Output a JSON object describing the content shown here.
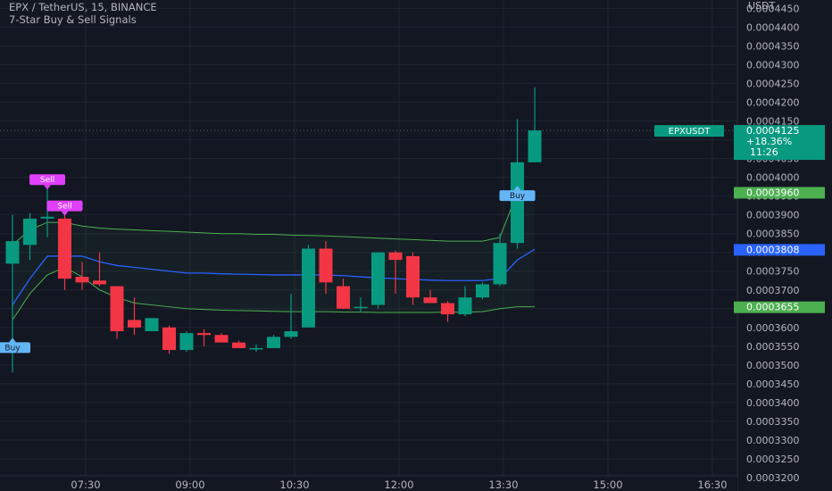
{
  "header": {
    "symbol_line": "EPX / TetherUS, 15, BINANCE",
    "indicator_line": "7-Star Buy & Sell Signals"
  },
  "price_scale": {
    "currency": "USDT",
    "tick_labels": [
      "0.0004450",
      "0.0004400",
      "0.0004350",
      "0.0004300",
      "0.0004250",
      "0.0004200",
      "0.0004150",
      "0.0004100",
      "0.0004050",
      "0.0004000",
      "0.0003950",
      "0.0003900",
      "0.0003850",
      "0.0003800",
      "0.0003750",
      "0.0003700",
      "0.0003650",
      "0.0003600",
      "0.0003550",
      "0.0003500",
      "0.0003450",
      "0.0003400",
      "0.0003350",
      "0.0003300",
      "0.0003250",
      "0.0003200"
    ],
    "last_price_badge": {
      "symbol": "EPXUSDT",
      "price": "0.0004125",
      "change": "+18.36%",
      "countdown": "11:26",
      "color": "#089981"
    },
    "level_badges": [
      {
        "label": "0.0003960",
        "value": 0.000396,
        "color": "#4caf50"
      },
      {
        "label": "0.0003808",
        "value": 0.0003808,
        "color": "#2962ff"
      },
      {
        "label": "0.0003655",
        "value": 0.0003655,
        "color": "#4caf50"
      }
    ]
  },
  "time_scale": {
    "labels": [
      {
        "text": "07:30",
        "bar": 4.0
      },
      {
        "text": "09:00",
        "bar": 10.0
      },
      {
        "text": "10:30",
        "bar": 16.0
      },
      {
        "text": "12:00",
        "bar": 22.0
      },
      {
        "text": "13:30",
        "bar": 28.0
      },
      {
        "text": "15:00",
        "bar": 34.0
      },
      {
        "text": "16:30",
        "bar": 40.0
      }
    ]
  },
  "chart_data": {
    "type": "candlestick",
    "symbol": "EPX / TetherUS",
    "interval": "15",
    "exchange": "BINANCE",
    "ylim": [
      0.00032,
      0.000447
    ],
    "colors": {
      "up": "#089981",
      "down": "#f23645",
      "background": "#131722",
      "grid": "#1f2430",
      "text": "#b2b5be",
      "band": "#4caf50",
      "basis": "#2962ff"
    },
    "candles": [
      {
        "o": 0.000377,
        "h": 0.00039,
        "l": 0.000348,
        "c": 0.000383
      },
      {
        "o": 0.000382,
        "h": 0.0003905,
        "l": 0.000378,
        "c": 0.000389
      },
      {
        "o": 0.000389,
        "h": 0.000397,
        "l": 0.000384,
        "c": 0.0003895
      },
      {
        "o": 0.000389,
        "h": 0.00039,
        "l": 0.00037,
        "c": 0.000373
      },
      {
        "o": 0.0003735,
        "h": 0.0003775,
        "l": 0.00037,
        "c": 0.000372
      },
      {
        "o": 0.0003725,
        "h": 0.00038,
        "l": 0.000371,
        "c": 0.0003715
      },
      {
        "o": 0.000371,
        "h": 0.000371,
        "l": 0.000357,
        "c": 0.000359
      },
      {
        "o": 0.000362,
        "h": 0.000368,
        "l": 0.000358,
        "c": 0.00036
      },
      {
        "o": 0.000359,
        "h": 0.0003625,
        "l": 0.000359,
        "c": 0.0003625
      },
      {
        "o": 0.00036,
        "h": 0.0003605,
        "l": 0.000353,
        "c": 0.000354
      },
      {
        "o": 0.000354,
        "h": 0.000359,
        "l": 0.0003535,
        "c": 0.0003585
      },
      {
        "o": 0.0003585,
        "h": 0.0003595,
        "l": 0.000355,
        "c": 0.000358
      },
      {
        "o": 0.000358,
        "h": 0.0003585,
        "l": 0.000356,
        "c": 0.000356
      },
      {
        "o": 0.000356,
        "h": 0.0003565,
        "l": 0.0003545,
        "c": 0.0003545
      },
      {
        "o": 0.0003545,
        "h": 0.0003555,
        "l": 0.0003535,
        "c": 0.0003545
      },
      {
        "o": 0.0003545,
        "h": 0.000358,
        "l": 0.0003545,
        "c": 0.0003575
      },
      {
        "o": 0.0003575,
        "h": 0.000369,
        "l": 0.000357,
        "c": 0.000359
      },
      {
        "o": 0.00036,
        "h": 0.000382,
        "l": 0.00036,
        "c": 0.000381
      },
      {
        "o": 0.000381,
        "h": 0.000383,
        "l": 0.000369,
        "c": 0.000372
      },
      {
        "o": 0.000371,
        "h": 0.000373,
        "l": 0.000365,
        "c": 0.000365
      },
      {
        "o": 0.0003655,
        "h": 0.000368,
        "l": 0.000364,
        "c": 0.0003655
      },
      {
        "o": 0.000366,
        "h": 0.00038,
        "l": 0.000365,
        "c": 0.00038
      },
      {
        "o": 0.00038,
        "h": 0.0003805,
        "l": 0.000369,
        "c": 0.000378
      },
      {
        "o": 0.000379,
        "h": 0.00038,
        "l": 0.000366,
        "c": 0.000368
      },
      {
        "o": 0.000368,
        "h": 0.00037,
        "l": 0.0003665,
        "c": 0.0003665
      },
      {
        "o": 0.0003665,
        "h": 0.000367,
        "l": 0.0003615,
        "c": 0.0003635
      },
      {
        "o": 0.0003635,
        "h": 0.000371,
        "l": 0.000363,
        "c": 0.000368
      },
      {
        "o": 0.000368,
        "h": 0.000372,
        "l": 0.0003675,
        "c": 0.0003715
      },
      {
        "o": 0.0003715,
        "h": 0.000385,
        "l": 0.000371,
        "c": 0.0003825
      },
      {
        "o": 0.0003825,
        "h": 0.0004155,
        "l": 0.000381,
        "c": 0.000404
      },
      {
        "o": 0.000404,
        "h": 0.000424,
        "l": 0.000404,
        "c": 0.0004125
      }
    ],
    "bands": {
      "upper": [
        0.000382,
        0.000386,
        0.000388,
        0.000388,
        0.000387,
        0.0003865,
        0.0003862,
        0.000386,
        0.0003858,
        0.0003856,
        0.0003854,
        0.0003852,
        0.000385,
        0.000385,
        0.0003848,
        0.0003848,
        0.0003846,
        0.0003845,
        0.0003844,
        0.0003842,
        0.000384,
        0.0003838,
        0.0003836,
        0.0003834,
        0.0003832,
        0.000383,
        0.000383,
        0.000383,
        0.000384,
        0.000396,
        0.000396
      ],
      "basis": [
        0.000366,
        0.000373,
        0.000379,
        0.000379,
        0.000379,
        0.0003775,
        0.0003765,
        0.000376,
        0.0003755,
        0.000375,
        0.0003745,
        0.0003745,
        0.0003743,
        0.0003742,
        0.0003741,
        0.000374,
        0.000374,
        0.000374,
        0.000374,
        0.0003738,
        0.0003735,
        0.0003732,
        0.000373,
        0.0003728,
        0.0003726,
        0.0003725,
        0.0003725,
        0.0003725,
        0.000373,
        0.000378,
        0.0003808
      ],
      "lower": [
        0.000362,
        0.000369,
        0.000374,
        0.000376,
        0.0003735,
        0.00037,
        0.000368,
        0.0003665,
        0.000366,
        0.0003655,
        0.000365,
        0.0003648,
        0.0003646,
        0.0003645,
        0.0003644,
        0.0003643,
        0.0003642,
        0.0003642,
        0.0003642,
        0.0003641,
        0.0003641,
        0.000364,
        0.000364,
        0.000364,
        0.000364,
        0.0003641,
        0.0003641,
        0.0003642,
        0.000365,
        0.0003655,
        0.0003655
      ]
    },
    "signals": [
      {
        "label": "Sell",
        "type": "sell",
        "bar": 2,
        "price": 0.000397
      },
      {
        "label": "Sell",
        "type": "sell",
        "bar": 3,
        "price": 0.00039
      },
      {
        "label": "Buy",
        "type": "buy",
        "bar": 0,
        "price": 0.000357
      },
      {
        "label": "Buy",
        "type": "buy",
        "bar": 29,
        "price": 0.0003975
      }
    ]
  }
}
